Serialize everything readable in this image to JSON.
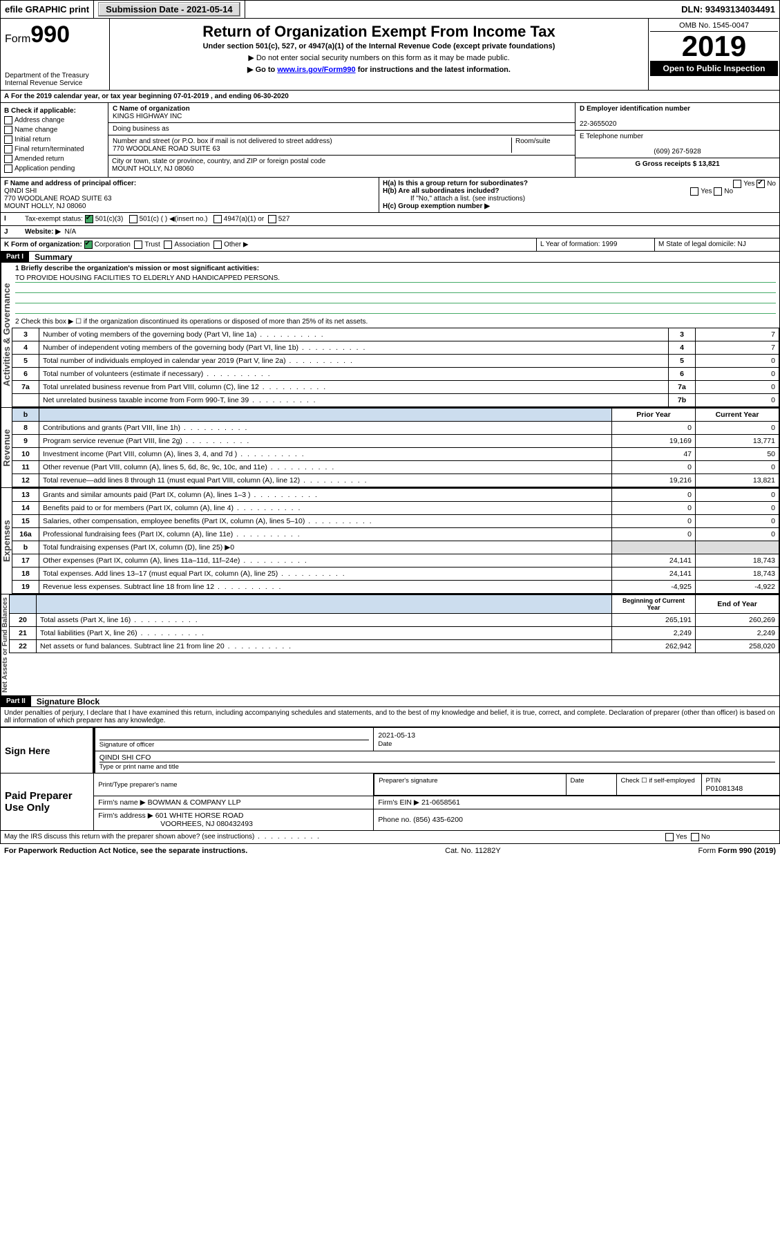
{
  "topbar": {
    "efile": "efile GRAPHIC print",
    "subdate_label": "Submission Date - 2021-05-14",
    "dln": "DLN: 93493134034491"
  },
  "header": {
    "form_prefix": "Form",
    "form_num": "990",
    "title": "Return of Organization Exempt From Income Tax",
    "sub1": "Under section 501(c), 527, or 4947(a)(1) of the Internal Revenue Code (except private foundations)",
    "sub2": "▶ Do not enter social security numbers on this form as it may be made public.",
    "sub3_pre": "▶ Go to ",
    "sub3_link": "www.irs.gov/Form990",
    "sub3_post": " for instructions and the latest information.",
    "dept": "Department of the Treasury",
    "irs": "Internal Revenue Service",
    "omb": "OMB No. 1545-0047",
    "year": "2019",
    "open": "Open to Public Inspection"
  },
  "A": {
    "text": "For the 2019 calendar year, or tax year beginning 07-01-2019    , and ending 06-30-2020"
  },
  "B": {
    "label": "B Check if applicable:",
    "items": [
      "Address change",
      "Name change",
      "Initial return",
      "Final return/terminated",
      "Amended return",
      "Application pending"
    ]
  },
  "C": {
    "label": "C Name of organization",
    "org": "KINGS HIGHWAY INC",
    "dba_label": "Doing business as",
    "addr_label": "Number and street (or P.O. box if mail is not delivered to street address)",
    "room_label": "Room/suite",
    "addr": "770 WOODLANE ROAD SUITE 63",
    "city_label": "City or town, state or province, country, and ZIP or foreign postal code",
    "city": "MOUNT HOLLY, NJ  08060"
  },
  "D": {
    "label": "D Employer identification number",
    "ein": "22-3655020"
  },
  "E": {
    "label": "E Telephone number",
    "tel": "(609) 267-5928"
  },
  "G": {
    "label": "G Gross receipts $ 13,821"
  },
  "F": {
    "label": "F  Name and address of principal officer:",
    "name": "QINDI SHI",
    "addr1": "770 WOODLANE ROAD SUITE 63",
    "addr2": "MOUNT HOLLY, NJ  08060"
  },
  "H": {
    "a_label": "H(a)  Is this a group return for subordinates?",
    "a_yes": "Yes",
    "a_no": "No",
    "b_label": "H(b)  Are all subordinates included?",
    "b_yes": "Yes",
    "b_no": "No",
    "b_note": "If \"No,\" attach a list. (see instructions)",
    "c_label": "H(c)  Group exemption number ▶"
  },
  "I": {
    "label": "Tax-exempt status:",
    "o1": "501(c)(3)",
    "o2": "501(c) (  ) ◀(insert no.)",
    "o3": "4947(a)(1) or",
    "o4": "527"
  },
  "J": {
    "label": "Website: ▶",
    "val": "N/A"
  },
  "K": {
    "label": "K Form of organization:",
    "o1": "Corporation",
    "o2": "Trust",
    "o3": "Association",
    "o4": "Other ▶"
  },
  "L": {
    "label": "L Year of formation: 1999"
  },
  "M": {
    "label": "M State of legal domicile: NJ"
  },
  "part1": {
    "hdr": "Part I",
    "title": "Summary",
    "q1": "1  Briefly describe the organization's mission or most significant activities:",
    "mission": "TO PROVIDE HOUSING FACILITIES TO ELDERLY AND HANDICAPPED PERSONS.",
    "q2": "2   Check this box ▶ ☐  if the organization discontinued its operations or disposed of more than 25% of its net assets.",
    "sidetabs": [
      "Activities & Governance",
      "Revenue",
      "Expenses",
      "Net Assets or Fund Balances"
    ],
    "rows_gov": [
      {
        "n": "3",
        "t": "Number of voting members of the governing body (Part VI, line 1a)",
        "box": "3",
        "v": "7"
      },
      {
        "n": "4",
        "t": "Number of independent voting members of the governing body (Part VI, line 1b)",
        "box": "4",
        "v": "7"
      },
      {
        "n": "5",
        "t": "Total number of individuals employed in calendar year 2019 (Part V, line 2a)",
        "box": "5",
        "v": "0"
      },
      {
        "n": "6",
        "t": "Total number of volunteers (estimate if necessary)",
        "box": "6",
        "v": "0"
      },
      {
        "n": "7a",
        "t": "Total unrelated business revenue from Part VIII, column (C), line 12",
        "box": "7a",
        "v": "0"
      },
      {
        "n": "",
        "t": "Net unrelated business taxable income from Form 990-T, line 39",
        "box": "7b",
        "v": "0"
      }
    ],
    "colhdr": {
      "b": "b",
      "py": "Prior Year",
      "cy": "Current Year"
    },
    "rows_rev": [
      {
        "n": "8",
        "t": "Contributions and grants (Part VIII, line 1h)",
        "py": "0",
        "cy": "0"
      },
      {
        "n": "9",
        "t": "Program service revenue (Part VIII, line 2g)",
        "py": "19,169",
        "cy": "13,771"
      },
      {
        "n": "10",
        "t": "Investment income (Part VIII, column (A), lines 3, 4, and 7d )",
        "py": "47",
        "cy": "50"
      },
      {
        "n": "11",
        "t": "Other revenue (Part VIII, column (A), lines 5, 6d, 8c, 9c, 10c, and 11e)",
        "py": "0",
        "cy": "0"
      },
      {
        "n": "12",
        "t": "Total revenue—add lines 8 through 11 (must equal Part VIII, column (A), line 12)",
        "py": "19,216",
        "cy": "13,821"
      }
    ],
    "rows_exp": [
      {
        "n": "13",
        "t": "Grants and similar amounts paid (Part IX, column (A), lines 1–3 )",
        "py": "0",
        "cy": "0"
      },
      {
        "n": "14",
        "t": "Benefits paid to or for members (Part IX, column (A), line 4)",
        "py": "0",
        "cy": "0"
      },
      {
        "n": "15",
        "t": "Salaries, other compensation, employee benefits (Part IX, column (A), lines 5–10)",
        "py": "0",
        "cy": "0"
      },
      {
        "n": "16a",
        "t": "Professional fundraising fees (Part IX, column (A), line 11e)",
        "py": "0",
        "cy": "0"
      },
      {
        "n": "b",
        "t": "Total fundraising expenses (Part IX, column (D), line 25) ▶0",
        "py": "",
        "cy": "",
        "shade": true
      },
      {
        "n": "17",
        "t": "Other expenses (Part IX, column (A), lines 11a–11d, 11f–24e)",
        "py": "24,141",
        "cy": "18,743"
      },
      {
        "n": "18",
        "t": "Total expenses. Add lines 13–17 (must equal Part IX, column (A), line 25)",
        "py": "24,141",
        "cy": "18,743"
      },
      {
        "n": "19",
        "t": "Revenue less expenses. Subtract line 18 from line 12",
        "py": "-4,925",
        "cy": "-4,922"
      }
    ],
    "colhdr2": {
      "py": "Beginning of Current Year",
      "cy": "End of Year"
    },
    "rows_net": [
      {
        "n": "20",
        "t": "Total assets (Part X, line 16)",
        "py": "265,191",
        "cy": "260,269"
      },
      {
        "n": "21",
        "t": "Total liabilities (Part X, line 26)",
        "py": "2,249",
        "cy": "2,249"
      },
      {
        "n": "22",
        "t": "Net assets or fund balances. Subtract line 21 from line 20",
        "py": "262,942",
        "cy": "258,020"
      }
    ]
  },
  "part2": {
    "hdr": "Part II",
    "title": "Signature Block",
    "decl": "Under penalties of perjury, I declare that I have examined this return, including accompanying schedules and statements, and to the best of my knowledge and belief, it is true, correct, and complete. Declaration of preparer (other than officer) is based on all information of which preparer has any knowledge.",
    "sign_here": "Sign Here",
    "sig_of": "Signature of officer",
    "date_label": "Date",
    "date": "2021-05-13",
    "typed": "QINDI SHI CFO",
    "typed_label": "Type or print name and title",
    "paid": "Paid Preparer Use Only",
    "pph": "Print/Type preparer's name",
    "pps": "Preparer's signature",
    "ppd": "Date",
    "chkself": "Check ☐ if self-employed",
    "ptin_label": "PTIN",
    "ptin": "P01081348",
    "firm_name_label": "Firm's name    ▶",
    "firm_name": "BOWMAN & COMPANY LLP",
    "firm_ein_label": "Firm's EIN ▶",
    "firm_ein": "21-0658561",
    "firm_addr_label": "Firm's address ▶",
    "firm_addr1": "601 WHITE HORSE ROAD",
    "firm_addr2": "VOORHEES, NJ  080432493",
    "phone_label": "Phone no. (856) 435-6200",
    "discuss": "May the IRS discuss this return with the preparer shown above? (see instructions)",
    "yes": "Yes",
    "no": "No"
  },
  "footer": {
    "pra": "For Paperwork Reduction Act Notice, see the separate instructions.",
    "cat": "Cat. No. 11282Y",
    "form": "Form 990 (2019)"
  }
}
